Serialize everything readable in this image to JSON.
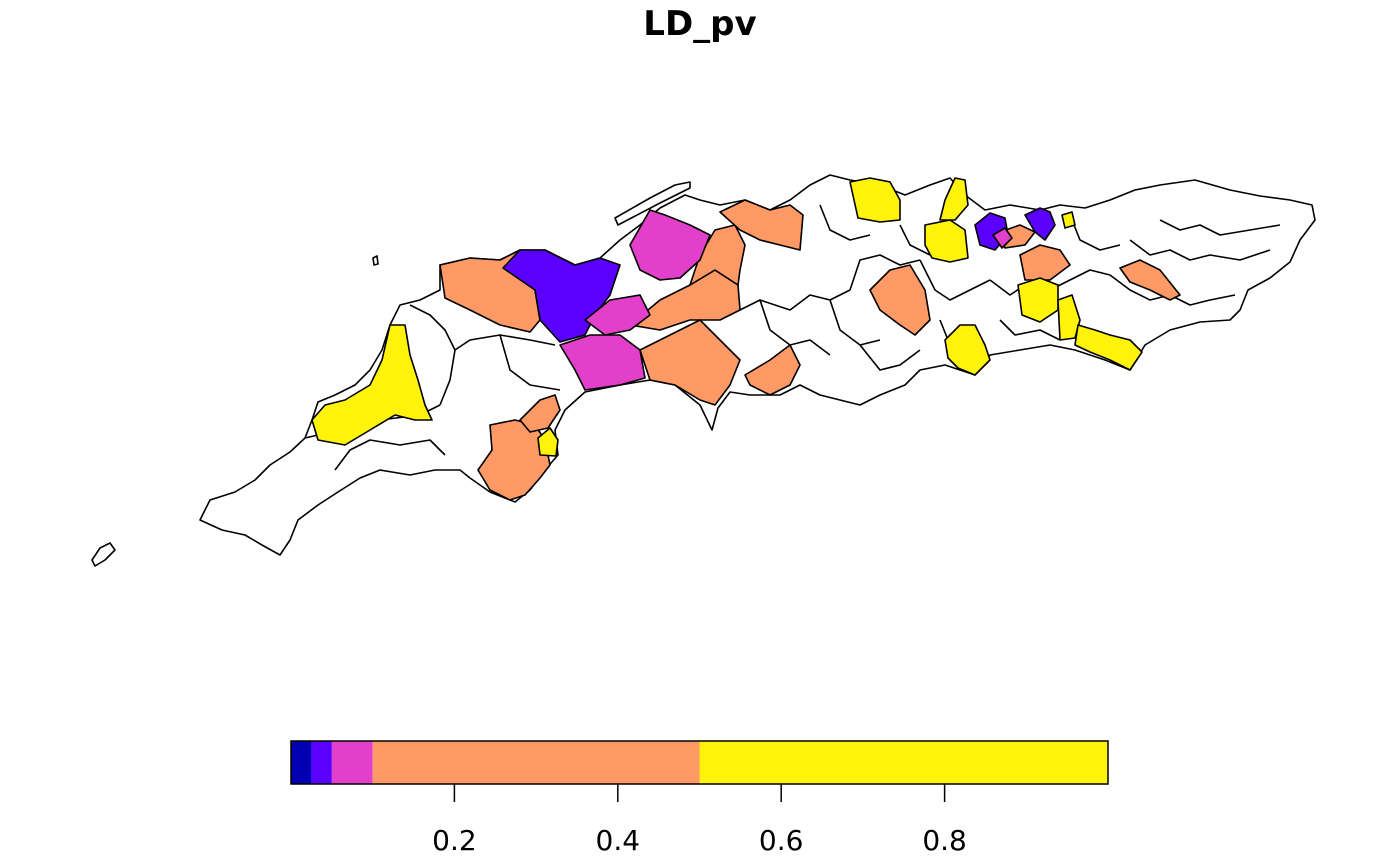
{
  "map": {
    "title": "LD_pv",
    "legend": {
      "breaks": [
        0,
        0.025,
        0.05,
        0.1,
        0.5,
        1.0
      ],
      "colors": [
        "#0000B3",
        "#5A00FF",
        "#E23FCB",
        "#FF9966",
        "#FFF30C"
      ],
      "tick_values": [
        0.2,
        0.4,
        0.6,
        0.8
      ],
      "tick_labels": [
        "0.2",
        "0.4",
        "0.6",
        "0.8"
      ]
    },
    "background": "#ffffff",
    "outline_color": "#000000",
    "region_fill_default": "#ffffff"
  }
}
